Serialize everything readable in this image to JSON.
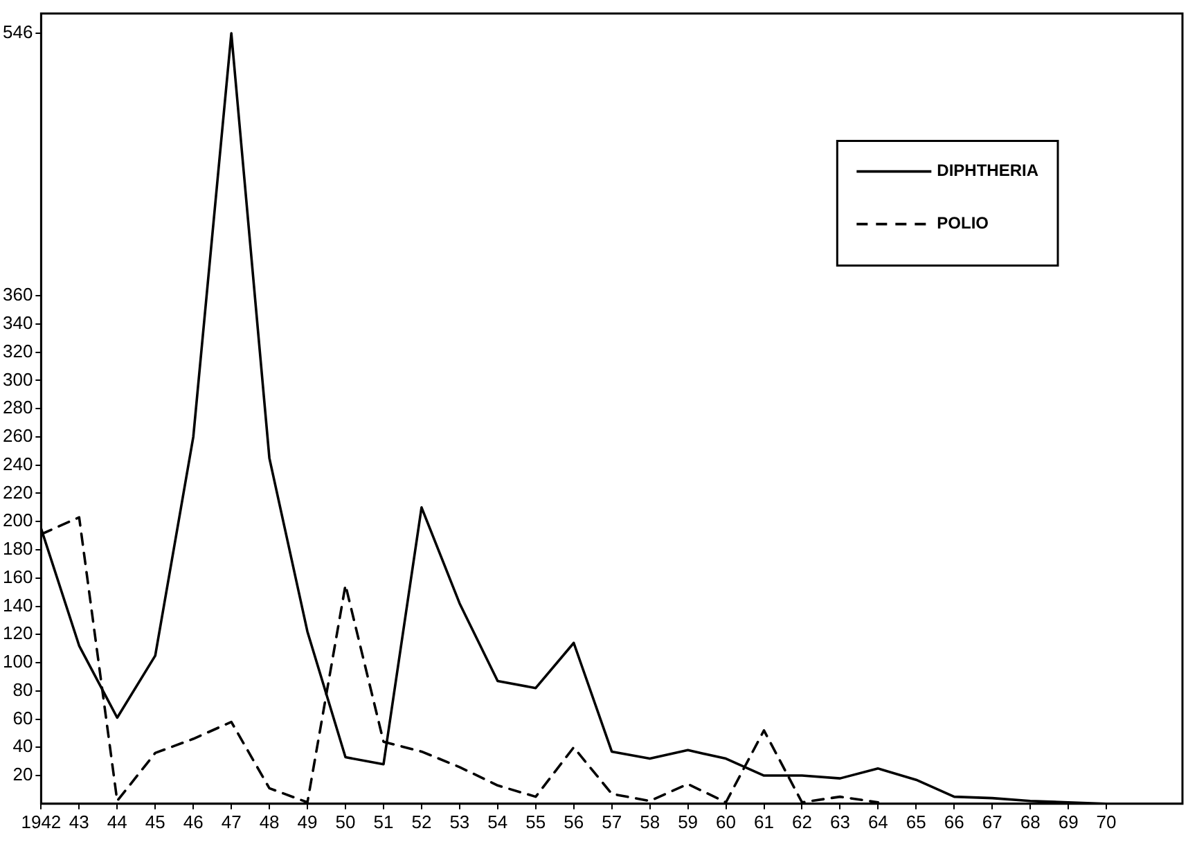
{
  "chart_data": {
    "type": "line",
    "x": [
      1942,
      1943,
      1944,
      1945,
      1946,
      1947,
      1948,
      1949,
      1950,
      1951,
      1952,
      1953,
      1954,
      1955,
      1956,
      1957,
      1958,
      1959,
      1960,
      1961,
      1962,
      1963,
      1964,
      1965,
      1966,
      1967,
      1968,
      1969,
      1970
    ],
    "series": [
      {
        "name": "DIPHTHERIA",
        "color": "#000000",
        "line_style": "solid",
        "values": [
          195,
          112,
          61,
          105,
          260,
          546,
          245,
          122,
          33,
          28,
          210,
          142,
          87,
          82,
          114,
          37,
          32,
          38,
          32,
          20,
          20,
          18,
          25,
          17,
          5,
          4,
          2,
          1,
          0
        ]
      },
      {
        "name": "POLIO",
        "color": "#000000",
        "line_style": "dashed",
        "values": [
          191,
          203,
          2,
          36,
          46,
          58,
          11,
          1,
          155,
          44,
          37,
          26,
          13,
          5,
          40,
          7,
          2,
          14,
          1,
          52,
          1,
          5,
          1,
          null,
          null,
          null,
          null,
          null,
          null
        ]
      }
    ],
    "xlim": [
      1942,
      1972
    ],
    "xticks": [
      {
        "value": 1942,
        "label": "1942"
      },
      {
        "value": 1943,
        "label": "43"
      },
      {
        "value": 1944,
        "label": "44"
      },
      {
        "value": 1945,
        "label": "45"
      },
      {
        "value": 1946,
        "label": "46"
      },
      {
        "value": 1947,
        "label": "47"
      },
      {
        "value": 1948,
        "label": "48"
      },
      {
        "value": 1949,
        "label": "49"
      },
      {
        "value": 1950,
        "label": "50"
      },
      {
        "value": 1951,
        "label": "51"
      },
      {
        "value": 1952,
        "label": "52"
      },
      {
        "value": 1953,
        "label": "53"
      },
      {
        "value": 1954,
        "label": "54"
      },
      {
        "value": 1955,
        "label": "55"
      },
      {
        "value": 1956,
        "label": "56"
      },
      {
        "value": 1957,
        "label": "57"
      },
      {
        "value": 1958,
        "label": "58"
      },
      {
        "value": 1959,
        "label": "59"
      },
      {
        "value": 1960,
        "label": "60"
      },
      {
        "value": 1961,
        "label": "61"
      },
      {
        "value": 1962,
        "label": "62"
      },
      {
        "value": 1963,
        "label": "63"
      },
      {
        "value": 1964,
        "label": "64"
      },
      {
        "value": 1965,
        "label": "65"
      },
      {
        "value": 1966,
        "label": "66"
      },
      {
        "value": 1967,
        "label": "67"
      },
      {
        "value": 1968,
        "label": "68"
      },
      {
        "value": 1969,
        "label": "69"
      },
      {
        "value": 1970,
        "label": "70"
      }
    ],
    "ylim": [
      0,
      560
    ],
    "yticks": [
      20,
      40,
      60,
      80,
      100,
      120,
      140,
      160,
      180,
      200,
      220,
      240,
      260,
      280,
      300,
      320,
      340,
      360,
      546
    ],
    "grid": false,
    "legend": "top right",
    "marker": "none"
  }
}
